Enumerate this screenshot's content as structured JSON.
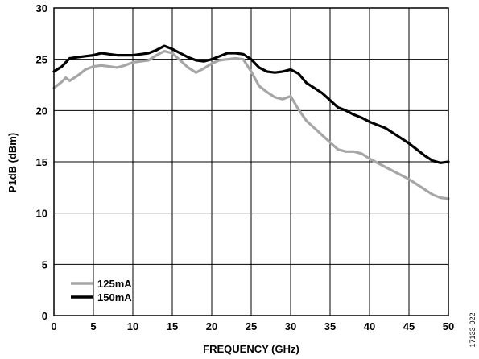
{
  "chart_data": {
    "type": "line",
    "xlabel": "FREQUENCY (GHz)",
    "ylabel": "P1dB (dBm)",
    "xlim": [
      0,
      50
    ],
    "ylim": [
      0,
      30
    ],
    "x_ticks": [
      0,
      5,
      10,
      15,
      20,
      25,
      30,
      35,
      40,
      45,
      50
    ],
    "y_ticks": [
      0,
      5,
      10,
      15,
      20,
      25,
      30
    ],
    "grid": true,
    "legend_position": "bottom-left",
    "figure_id": "17133-022",
    "series": [
      {
        "name": "125mA",
        "color": "#a6a6a6",
        "points": [
          [
            0,
            22.2
          ],
          [
            1,
            22.8
          ],
          [
            1.5,
            23.2
          ],
          [
            2,
            22.9
          ],
          [
            3,
            23.4
          ],
          [
            4,
            24.0
          ],
          [
            5,
            24.3
          ],
          [
            6,
            24.4
          ],
          [
            7,
            24.3
          ],
          [
            8,
            24.2
          ],
          [
            9,
            24.4
          ],
          [
            10,
            24.7
          ],
          [
            11,
            24.8
          ],
          [
            12,
            24.9
          ],
          [
            13,
            25.4
          ],
          [
            14,
            25.8
          ],
          [
            15,
            25.6
          ],
          [
            16,
            24.9
          ],
          [
            17,
            24.2
          ],
          [
            18,
            23.7
          ],
          [
            19,
            24.1
          ],
          [
            20,
            24.6
          ],
          [
            21,
            24.9
          ],
          [
            22,
            25.0
          ],
          [
            23,
            25.1
          ],
          [
            24,
            25.0
          ],
          [
            25,
            23.8
          ],
          [
            26,
            22.4
          ],
          [
            27,
            21.8
          ],
          [
            28,
            21.3
          ],
          [
            29,
            21.1
          ],
          [
            30,
            21.4
          ],
          [
            31,
            20.1
          ],
          [
            32,
            19.0
          ],
          [
            33,
            18.3
          ],
          [
            34,
            17.6
          ],
          [
            35,
            16.9
          ],
          [
            36,
            16.2
          ],
          [
            37,
            16.0
          ],
          [
            38,
            16.0
          ],
          [
            39,
            15.8
          ],
          [
            40,
            15.3
          ],
          [
            41,
            14.9
          ],
          [
            42,
            14.5
          ],
          [
            43,
            14.1
          ],
          [
            44,
            13.7
          ],
          [
            45,
            13.3
          ],
          [
            46,
            12.8
          ],
          [
            47,
            12.3
          ],
          [
            48,
            11.8
          ],
          [
            49,
            11.5
          ],
          [
            50,
            11.4
          ]
        ]
      },
      {
        "name": "150mA",
        "color": "#000000",
        "points": [
          [
            0,
            23.8
          ],
          [
            1,
            24.3
          ],
          [
            2,
            25.1
          ],
          [
            3,
            25.2
          ],
          [
            4,
            25.3
          ],
          [
            5,
            25.4
          ],
          [
            6,
            25.6
          ],
          [
            7,
            25.5
          ],
          [
            8,
            25.4
          ],
          [
            9,
            25.4
          ],
          [
            10,
            25.4
          ],
          [
            11,
            25.5
          ],
          [
            12,
            25.6
          ],
          [
            13,
            25.9
          ],
          [
            14,
            26.3
          ],
          [
            15,
            26.0
          ],
          [
            16,
            25.6
          ],
          [
            17,
            25.2
          ],
          [
            18,
            24.9
          ],
          [
            19,
            24.8
          ],
          [
            20,
            25.0
          ],
          [
            21,
            25.3
          ],
          [
            22,
            25.6
          ],
          [
            23,
            25.6
          ],
          [
            24,
            25.5
          ],
          [
            25,
            25.0
          ],
          [
            26,
            24.2
          ],
          [
            27,
            23.8
          ],
          [
            28,
            23.7
          ],
          [
            29,
            23.8
          ],
          [
            30,
            24.0
          ],
          [
            31,
            23.6
          ],
          [
            32,
            22.7
          ],
          [
            33,
            22.2
          ],
          [
            34,
            21.7
          ],
          [
            35,
            21.0
          ],
          [
            36,
            20.3
          ],
          [
            37,
            20.0
          ],
          [
            38,
            19.6
          ],
          [
            39,
            19.3
          ],
          [
            40,
            18.9
          ],
          [
            41,
            18.6
          ],
          [
            42,
            18.3
          ],
          [
            43,
            17.8
          ],
          [
            44,
            17.3
          ],
          [
            45,
            16.8
          ],
          [
            46,
            16.2
          ],
          [
            47,
            15.6
          ],
          [
            48,
            15.1
          ],
          [
            49,
            14.9
          ],
          [
            50,
            15.0
          ]
        ]
      }
    ]
  }
}
